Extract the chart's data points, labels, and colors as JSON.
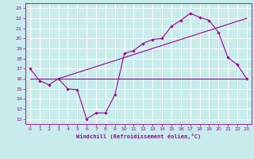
{
  "xlabel": "Windchill (Refroidissement éolien,°C)",
  "bg_color": "#c8ecec",
  "grid_color": "#ffffff",
  "line_color": "#990099",
  "xlim": [
    -0.5,
    23.5
  ],
  "ylim": [
    11.5,
    23.5
  ],
  "xticks": [
    0,
    1,
    2,
    3,
    4,
    5,
    6,
    7,
    8,
    9,
    10,
    11,
    12,
    13,
    14,
    15,
    16,
    17,
    18,
    19,
    20,
    21,
    22,
    23
  ],
  "yticks": [
    12,
    13,
    14,
    15,
    16,
    17,
    18,
    19,
    20,
    21,
    22,
    23
  ],
  "line1_x": [
    0,
    1,
    2,
    3,
    4,
    5,
    6,
    7,
    8,
    9,
    10,
    11,
    12,
    13,
    14,
    15,
    16,
    17,
    18,
    19,
    20,
    21,
    22,
    23
  ],
  "line1_y": [
    17.0,
    15.8,
    15.4,
    16.0,
    15.0,
    14.9,
    12.0,
    12.6,
    12.6,
    14.4,
    18.5,
    18.8,
    19.5,
    19.9,
    20.0,
    21.2,
    21.8,
    22.5,
    22.1,
    21.8,
    20.6,
    18.1,
    17.4,
    16.0
  ],
  "line2_x": [
    0,
    23
  ],
  "line2_y": [
    16.0,
    16.0
  ],
  "line3_x": [
    3,
    23
  ],
  "line3_y": [
    16.0,
    22.0
  ]
}
